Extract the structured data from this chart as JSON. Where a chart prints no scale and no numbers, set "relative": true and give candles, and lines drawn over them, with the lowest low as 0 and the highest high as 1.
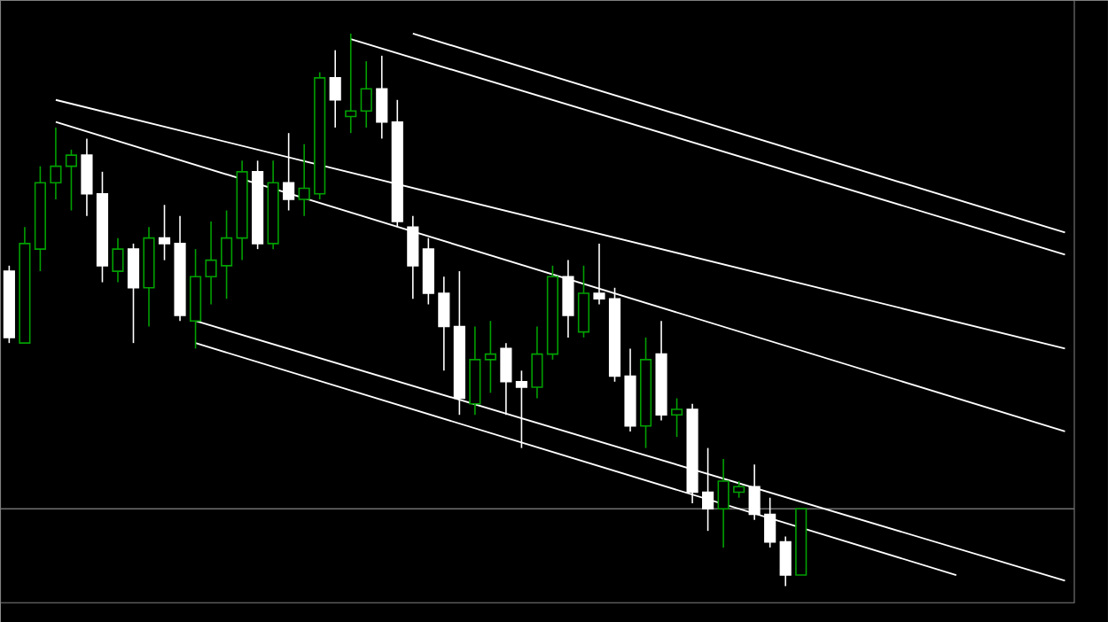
{
  "chart_data": {
    "type": "candlestick",
    "relative": true,
    "categories": [
      null,
      null,
      null,
      null,
      null,
      null,
      null,
      null,
      null,
      null,
      null,
      null,
      null,
      null,
      null,
      null,
      null,
      null,
      null,
      null,
      null,
      null,
      null,
      null,
      null,
      null,
      null,
      null,
      null,
      null,
      null,
      null,
      null,
      null,
      null,
      null,
      null,
      null,
      null,
      null,
      null,
      null,
      null,
      null,
      null,
      null,
      null,
      null,
      null,
      null,
      null,
      null,
      null,
      null,
      null,
      null,
      null,
      null,
      null,
      null,
      null,
      null,
      null,
      null,
      null,
      null,
      null,
      null,
      null
    ],
    "ohlc": [
      [
        0.57,
        0.58,
        0.44,
        0.45
      ],
      [
        0.44,
        0.65,
        0.44,
        0.62
      ],
      [
        0.61,
        0.76,
        0.57,
        0.73
      ],
      [
        0.73,
        0.83,
        0.7,
        0.76
      ],
      [
        0.76,
        0.79,
        0.68,
        0.78
      ],
      [
        0.78,
        0.81,
        0.67,
        0.71
      ],
      [
        0.71,
        0.75,
        0.55,
        0.58
      ],
      [
        0.57,
        0.63,
        0.55,
        0.61
      ],
      [
        0.61,
        0.62,
        0.44,
        0.54
      ],
      [
        0.54,
        0.65,
        0.47,
        0.63
      ],
      [
        0.63,
        0.69,
        0.59,
        0.62
      ],
      [
        0.62,
        0.67,
        0.48,
        0.49
      ],
      [
        0.48,
        0.61,
        0.43,
        0.56
      ],
      [
        0.56,
        0.66,
        0.51,
        0.59
      ],
      [
        0.58,
        0.68,
        0.52,
        0.63
      ],
      [
        0.63,
        0.77,
        0.59,
        0.75
      ],
      [
        0.75,
        0.77,
        0.61,
        0.62
      ],
      [
        0.62,
        0.77,
        0.61,
        0.73
      ],
      [
        0.73,
        0.82,
        0.68,
        0.7
      ],
      [
        0.7,
        0.8,
        0.67,
        0.72
      ],
      [
        0.71,
        0.93,
        0.7,
        0.92
      ],
      [
        0.92,
        0.97,
        0.83,
        0.88
      ],
      [
        0.85,
        1,
        0.82,
        0.86
      ],
      [
        0.86,
        0.95,
        0.83,
        0.9
      ],
      [
        0.9,
        0.96,
        0.81,
        0.84
      ],
      [
        0.84,
        0.88,
        0.65,
        0.66
      ],
      [
        0.65,
        0.67,
        0.52,
        0.58
      ],
      [
        0.61,
        0.63,
        0.51,
        0.53
      ],
      [
        0.53,
        0.56,
        0.39,
        0.47
      ],
      [
        0.47,
        0.57,
        0.31,
        0.34
      ],
      [
        0.33,
        0.47,
        0.31,
        0.41
      ],
      [
        0.41,
        0.48,
        0.35,
        0.42
      ],
      [
        0.43,
        0.44,
        0.31,
        0.37
      ],
      [
        0.37,
        0.39,
        0.25,
        0.36
      ],
      [
        0.36,
        0.47,
        0.34,
        0.42
      ],
      [
        0.42,
        0.58,
        0.41,
        0.56
      ],
      [
        0.56,
        0.59,
        0.45,
        0.49
      ],
      [
        0.46,
        0.58,
        0.45,
        0.53
      ],
      [
        0.53,
        0.62,
        0.51,
        0.52
      ],
      [
        0.52,
        0.54,
        0.37,
        0.38
      ],
      [
        0.38,
        0.43,
        0.28,
        0.29
      ],
      [
        0.29,
        0.45,
        0.25,
        0.41
      ],
      [
        0.42,
        0.48,
        0.3,
        0.31
      ],
      [
        0.31,
        0.34,
        0.27,
        0.32
      ],
      [
        0.32,
        0.33,
        0.15,
        0.17
      ],
      [
        0.17,
        0.25,
        0.1,
        0.14
      ],
      [
        0.14,
        0.23,
        0.07,
        0.19
      ],
      [
        0.17,
        0.19,
        0.16,
        0.18
      ],
      [
        0.18,
        0.22,
        0.12,
        0.13
      ],
      [
        0.13,
        0.16,
        0.07,
        0.08
      ],
      [
        0.08,
        0.09,
        0,
        0.02
      ],
      [
        0.02,
        0.14,
        0.02,
        0.14
      ],
      null,
      null,
      null,
      null,
      null,
      null,
      null,
      null,
      null,
      null,
      null,
      null,
      null,
      null,
      null,
      null,
      null
    ],
    "colors": [
      "#ffffff",
      "#00a000",
      "#00a000",
      "#00a000",
      "#00a000",
      "#ffffff",
      "#ffffff",
      "#00a000",
      "#ffffff",
      "#00a000",
      "#ffffff",
      "#ffffff",
      "#00a000",
      "#00a000",
      "#00a000",
      "#00a000",
      "#ffffff",
      "#00a000",
      "#ffffff",
      "#00a000",
      "#00a000",
      "#ffffff",
      "#00a000",
      "#00a000",
      "#ffffff",
      "#ffffff",
      "#ffffff",
      "#ffffff",
      "#ffffff",
      "#ffffff",
      "#00a000",
      "#00a000",
      "#ffffff",
      "#ffffff",
      "#00a000",
      "#00a000",
      "#ffffff",
      "#00a000",
      "#ffffff",
      "#ffffff",
      "#ffffff",
      "#00a000",
      "#ffffff",
      "#00a000",
      "#ffffff",
      "#ffffff",
      "#00a000",
      "#00a000",
      "#ffffff",
      "#ffffff",
      "#ffffff",
      "#00a000",
      null,
      null,
      null,
      null,
      null,
      null,
      null,
      null,
      null,
      null,
      null,
      null,
      null,
      null,
      null,
      null,
      null
    ],
    "series": [
      {
        "type": "line",
        "color": "#ffffff",
        "values": [
          null,
          null,
          null,
          null,
          null,
          null,
          null,
          null,
          null,
          null,
          null,
          null,
          null,
          null,
          null,
          null,
          null,
          null,
          null,
          null,
          null,
          null,
          null,
          null,
          null,
          null,
          1.0,
          null,
          null,
          null,
          null,
          null,
          null,
          null,
          null,
          null,
          null,
          null,
          null,
          null,
          null,
          null,
          null,
          null,
          null,
          null,
          null,
          null,
          null,
          null,
          null,
          null,
          null,
          null,
          null,
          null,
          null,
          null,
          null,
          null,
          null,
          null,
          null,
          null,
          null,
          null,
          null,
          null,
          0.64
        ]
      },
      {
        "type": "line",
        "color": "#ffffff",
        "values": [
          null,
          null,
          null,
          null,
          null,
          null,
          null,
          null,
          null,
          null,
          null,
          null,
          null,
          null,
          null,
          null,
          null,
          null,
          null,
          null,
          null,
          null,
          0.99,
          null,
          null,
          null,
          null,
          null,
          null,
          null,
          null,
          null,
          null,
          null,
          null,
          null,
          null,
          null,
          null,
          null,
          null,
          null,
          null,
          null,
          null,
          null,
          null,
          null,
          null,
          null,
          null,
          null,
          null,
          null,
          null,
          null,
          null,
          null,
          null,
          null,
          null,
          null,
          null,
          null,
          null,
          null,
          null,
          null,
          0.6
        ]
      },
      {
        "type": "line",
        "color": "#ffffff",
        "values": [
          null,
          null,
          null,
          0.88,
          null,
          null,
          null,
          null,
          null,
          null,
          null,
          null,
          null,
          null,
          null,
          null,
          null,
          null,
          null,
          null,
          null,
          null,
          null,
          null,
          null,
          null,
          null,
          null,
          null,
          null,
          null,
          null,
          null,
          null,
          null,
          null,
          null,
          null,
          null,
          null,
          null,
          null,
          null,
          null,
          null,
          null,
          null,
          null,
          null,
          null,
          null,
          null,
          null,
          null,
          null,
          null,
          null,
          null,
          null,
          null,
          null,
          null,
          null,
          null,
          null,
          null,
          null,
          null,
          0.43
        ]
      },
      {
        "type": "line",
        "color": "#ffffff",
        "values": [
          null,
          null,
          null,
          0.84,
          null,
          null,
          null,
          null,
          null,
          null,
          null,
          null,
          null,
          null,
          null,
          null,
          null,
          null,
          null,
          null,
          null,
          null,
          null,
          null,
          null,
          null,
          null,
          null,
          null,
          null,
          null,
          null,
          null,
          null,
          null,
          null,
          null,
          null,
          null,
          null,
          null,
          null,
          null,
          null,
          null,
          null,
          null,
          null,
          null,
          null,
          null,
          null,
          null,
          null,
          null,
          null,
          null,
          null,
          null,
          null,
          null,
          null,
          null,
          null,
          null,
          null,
          null,
          null,
          0.28
        ]
      },
      {
        "type": "line",
        "color": "#ffffff",
        "values": [
          null,
          null,
          null,
          null,
          null,
          null,
          null,
          null,
          null,
          null,
          null,
          null,
          0.48,
          null,
          null,
          null,
          null,
          null,
          null,
          null,
          null,
          null,
          null,
          null,
          null,
          null,
          null,
          null,
          null,
          null,
          null,
          null,
          null,
          null,
          null,
          null,
          null,
          null,
          null,
          null,
          null,
          null,
          null,
          null,
          null,
          null,
          null,
          null,
          null,
          null,
          null,
          null,
          null,
          null,
          null,
          null,
          null,
          null,
          null,
          null,
          null,
          null,
          null,
          null,
          null,
          null,
          null,
          null,
          0.01
        ]
      },
      {
        "type": "line",
        "color": "#ffffff",
        "values": [
          null,
          null,
          null,
          null,
          null,
          null,
          null,
          null,
          null,
          null,
          null,
          null,
          0.44,
          null,
          null,
          null,
          null,
          null,
          null,
          null,
          null,
          null,
          null,
          null,
          null,
          null,
          null,
          null,
          null,
          null,
          null,
          null,
          null,
          null,
          null,
          null,
          null,
          null,
          null,
          null,
          null,
          null,
          null,
          null,
          null,
          null,
          null,
          null,
          null,
          null,
          null,
          null,
          null,
          null,
          null,
          null,
          null,
          null,
          null,
          null,
          null,
          0.02,
          null,
          null,
          null,
          null,
          null,
          null,
          null
        ]
      }
    ],
    "ref_lines": [
      {
        "axis": "y",
        "value": 0.14,
        "color": "#707070"
      }
    ]
  }
}
